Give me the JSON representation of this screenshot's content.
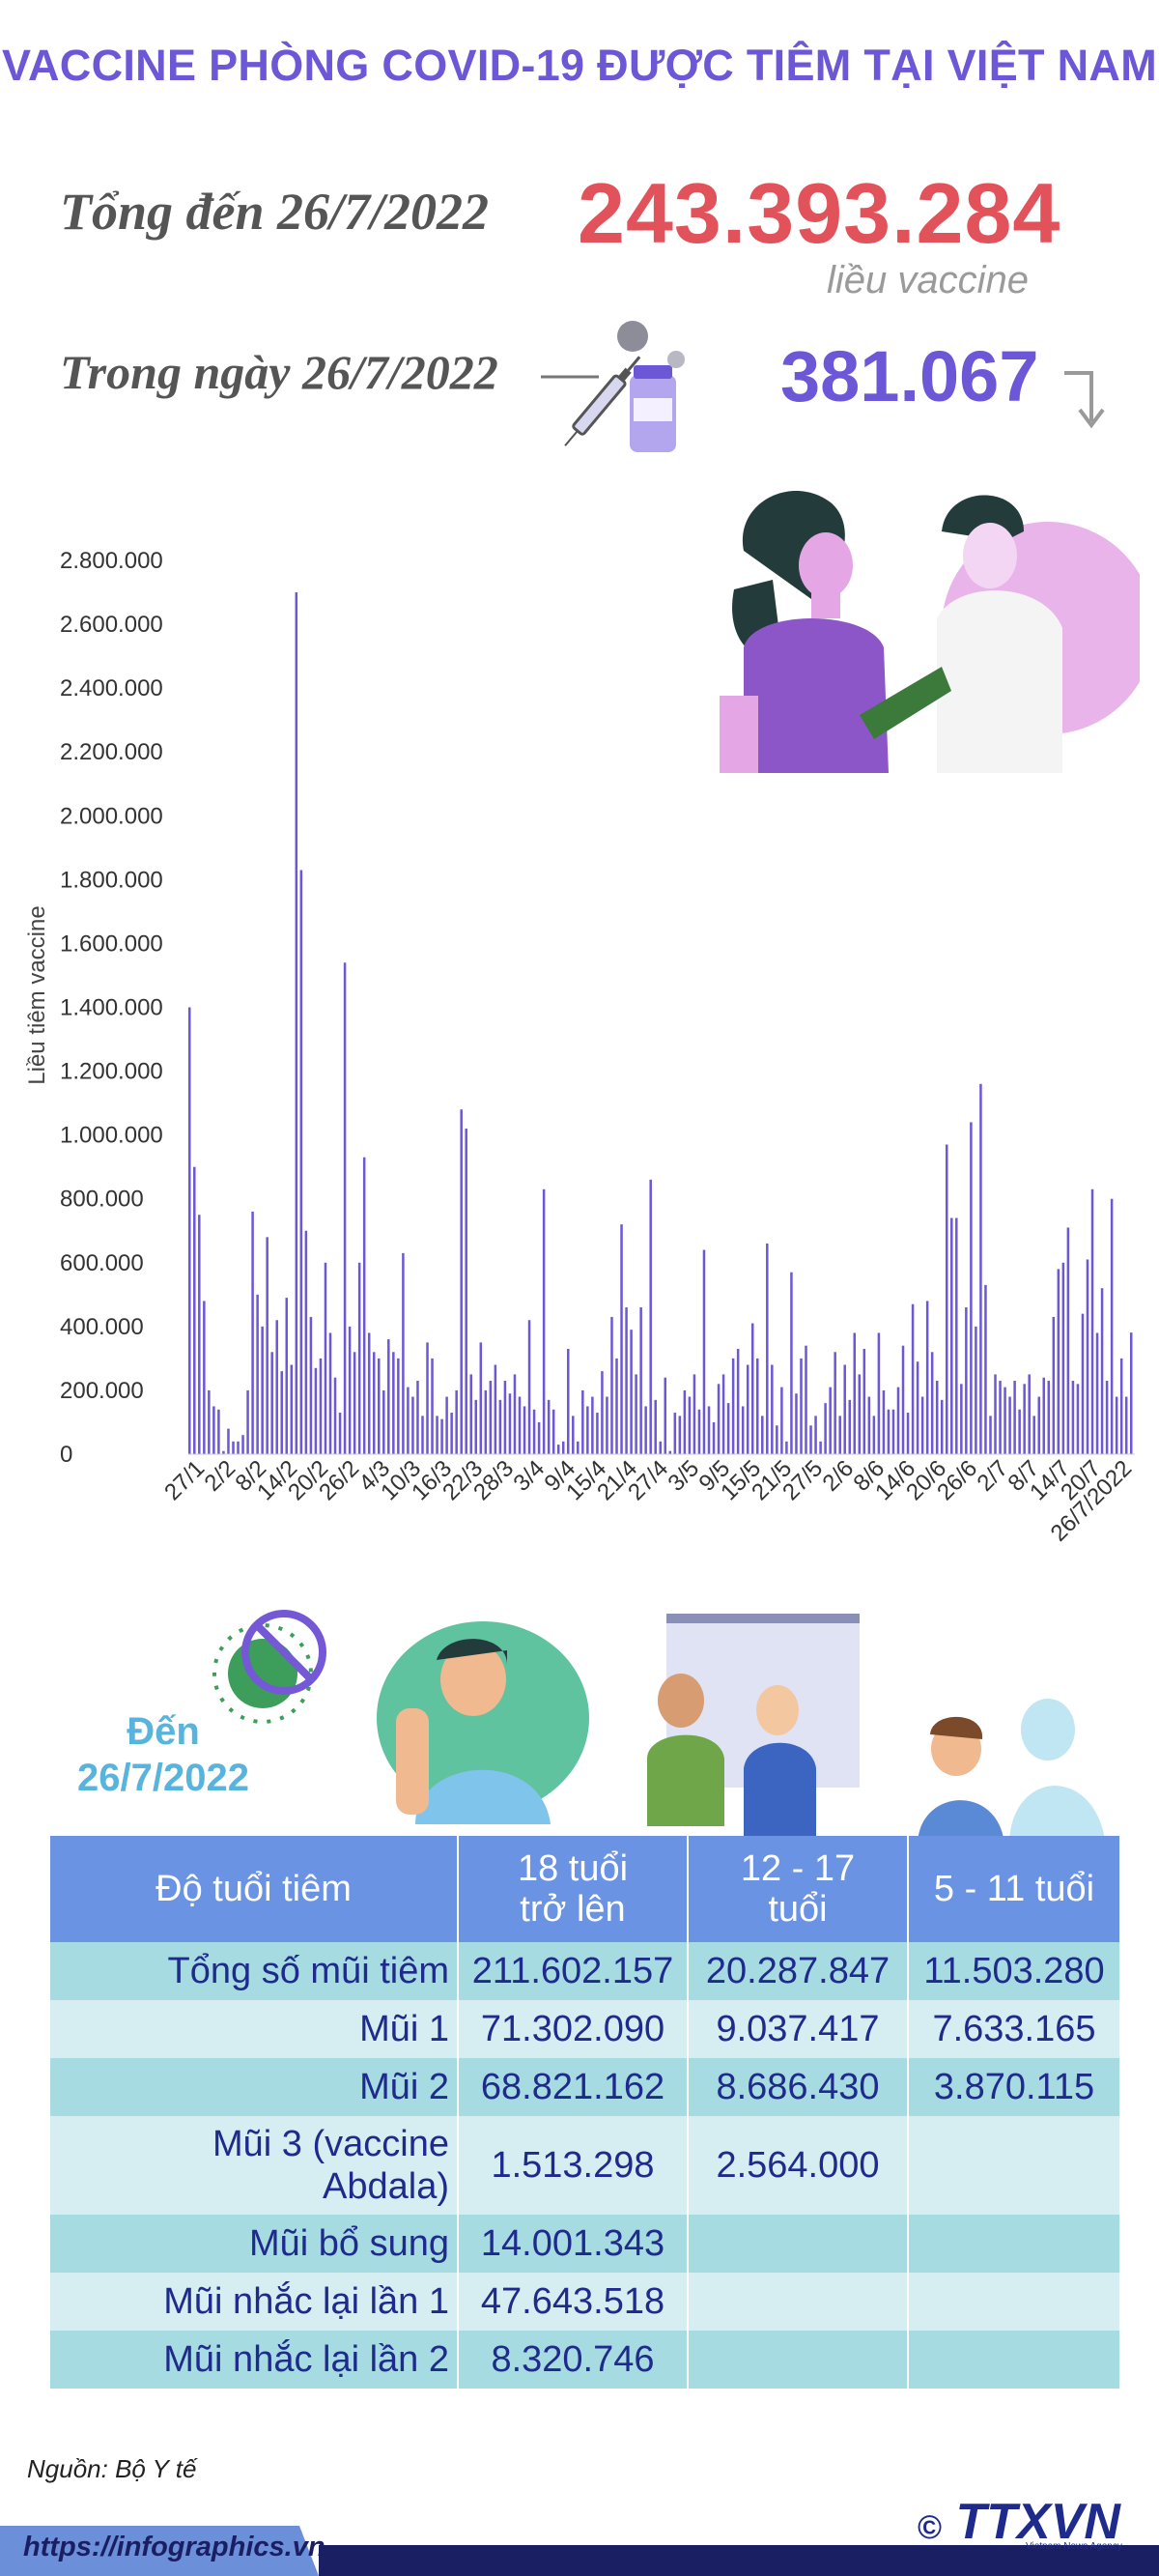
{
  "title": "VACCINE PHÒNG COVID-19 ĐƯỢC TIÊM TẠI VIỆT NAM",
  "total": {
    "label": "Tổng đến 26/7/2022",
    "value": "243.393.284",
    "unit": "liều vaccine"
  },
  "daily": {
    "label": "Trong ngày 26/7/2022",
    "value": "381.067"
  },
  "colors": {
    "title": "#6c58d6",
    "total": "#e2525a",
    "bar": "#6c58d6",
    "header": "#6b93e3",
    "row_dark": "#a7dbe2",
    "row_light": "#d6eef2",
    "table_text": "#1e2b8c",
    "as_of": "#59b4dd",
    "illustration_pink": "#e5a6e6"
  },
  "chart_data": {
    "type": "bar",
    "ylabel": "Liều tiêm vaccine",
    "ylim": [
      0,
      2800000
    ],
    "yticks": [
      "0",
      "200.000",
      "400.000",
      "600.000",
      "800.000",
      "1.000.000",
      "1.200.000",
      "1.400.000",
      "1.600.000",
      "1.800.000",
      "2.000.000",
      "2.200.000",
      "2.400.000",
      "2.600.000",
      "2.800.000"
    ],
    "xticks": [
      "27/1",
      "2/2",
      "8/2",
      "14/2",
      "20/2",
      "26/2",
      "4/3",
      "10/3",
      "16/3",
      "22/3",
      "28/3",
      "3/4",
      "9/4",
      "15/4",
      "21/4",
      "27/4",
      "3/5",
      "9/5",
      "15/5",
      "21/5",
      "27/5",
      "2/6",
      "8/6",
      "14/6",
      "20/6",
      "26/6",
      "2/7",
      "8/7",
      "14/7",
      "20/7",
      "26/7/2022"
    ],
    "grid": false,
    "values": [
      1400000,
      900000,
      750000,
      480000,
      200000,
      150000,
      140000,
      10000,
      80000,
      40000,
      40000,
      60000,
      200000,
      760000,
      500000,
      400000,
      680000,
      320000,
      420000,
      260000,
      490000,
      280000,
      2700000,
      1830000,
      700000,
      430000,
      270000,
      300000,
      600000,
      380000,
      240000,
      130000,
      1540000,
      400000,
      320000,
      600000,
      930000,
      380000,
      320000,
      300000,
      200000,
      360000,
      320000,
      300000,
      630000,
      210000,
      180000,
      230000,
      120000,
      350000,
      300000,
      120000,
      110000,
      180000,
      130000,
      200000,
      1080000,
      1020000,
      250000,
      170000,
      350000,
      200000,
      230000,
      280000,
      170000,
      230000,
      190000,
      250000,
      180000,
      150000,
      420000,
      140000,
      100000,
      830000,
      170000,
      140000,
      30000,
      40000,
      330000,
      120000,
      40000,
      200000,
      150000,
      180000,
      130000,
      260000,
      180000,
      430000,
      300000,
      720000,
      460000,
      390000,
      250000,
      460000,
      150000,
      860000,
      170000,
      40000,
      240000,
      10000,
      130000,
      120000,
      200000,
      180000,
      250000,
      140000,
      640000,
      150000,
      100000,
      220000,
      250000,
      160000,
      300000,
      330000,
      150000,
      280000,
      410000,
      300000,
      120000,
      660000,
      280000,
      90000,
      210000,
      40000,
      570000,
      190000,
      300000,
      340000,
      90000,
      120000,
      40000,
      160000,
      210000,
      320000,
      120000,
      280000,
      170000,
      380000,
      250000,
      330000,
      180000,
      120000,
      380000,
      200000,
      140000,
      140000,
      210000,
      340000,
      130000,
      470000,
      290000,
      180000,
      480000,
      320000,
      230000,
      170000,
      970000,
      740000,
      740000,
      220000,
      460000,
      1040000,
      400000,
      1160000,
      530000,
      120000,
      250000,
      230000,
      210000,
      180000,
      230000,
      140000,
      220000,
      250000,
      120000,
      180000,
      240000,
      230000,
      430000,
      580000,
      600000,
      710000,
      230000,
      220000,
      440000,
      610000,
      830000,
      380000,
      520000,
      230000,
      800000,
      180000,
      300000,
      180000,
      381067
    ]
  },
  "as_of": {
    "line1": "Đến",
    "line2": "26/7/2022"
  },
  "table": {
    "headers": [
      {
        "line1": "Độ tuổi tiêm",
        "line2": ""
      },
      {
        "line1": "18 tuổi",
        "line2": "trở lên"
      },
      {
        "line1": "12 - 17",
        "line2": "tuổi"
      },
      {
        "line1": "5 - 11 tuổi",
        "line2": ""
      }
    ],
    "rows": [
      {
        "label1": "Tổng số mũi tiêm",
        "label2": "",
        "c1": "211.602.157",
        "c2": "20.287.847",
        "c3": "11.503.280"
      },
      {
        "label1": "Mũi 1",
        "label2": "",
        "c1": "71.302.090",
        "c2": "9.037.417",
        "c3": "7.633.165"
      },
      {
        "label1": "Mũi 2",
        "label2": "",
        "c1": "68.821.162",
        "c2": "8.686.430",
        "c3": "3.870.115"
      },
      {
        "label1": "Mũi 3 (vaccine",
        "label2": "Abdala)",
        "c1": "1.513.298",
        "c2": "2.564.000",
        "c3": ""
      },
      {
        "label1": "Mũi bổ sung",
        "label2": "",
        "c1": "14.001.343",
        "c2": "",
        "c3": ""
      },
      {
        "label1": "Mũi nhắc lại lần 1",
        "label2": "",
        "c1": "47.643.518",
        "c2": "",
        "c3": ""
      },
      {
        "label1": "Mũi nhắc lại lần 2",
        "label2": "",
        "c1": "8.320.746",
        "c2": "",
        "c3": ""
      }
    ]
  },
  "source": "Nguồn: Bộ Y tế",
  "footer": {
    "url": "https://infographics.vn",
    "logo_text": "TTXVN",
    "copyright": "©",
    "agency": "Vietnam News Agency"
  },
  "icons": [
    "syringe-vial-icon",
    "trend-arrow-down-icon",
    "virus-crossed-icon"
  ]
}
